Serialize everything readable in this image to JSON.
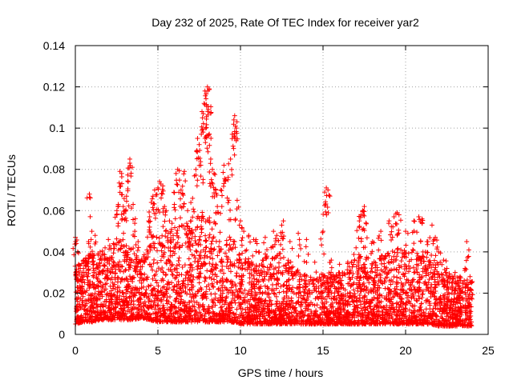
{
  "colors": {
    "background": "#ffffff",
    "marker": "#ff0000",
    "axis": "#000000",
    "grid": "#a0a0a0"
  },
  "chart_data": {
    "type": "scatter",
    "title": "Day 232 of 2025, Rate Of TEC Index for receiver yar2",
    "xlabel": "GPS time / hours",
    "ylabel": "ROTI / TECUs",
    "xlim": [
      0,
      25
    ],
    "ylim": [
      0,
      0.14
    ],
    "xticks": [
      0,
      5,
      10,
      15,
      20,
      25
    ],
    "yticks": [
      0,
      0.02,
      0.04,
      0.06,
      0.08,
      0.1,
      0.12,
      0.14
    ],
    "xtick_labels": [
      "0",
      "5",
      "10",
      "15",
      "20",
      "25"
    ],
    "ytick_labels": [
      "0",
      "0.02",
      "0.04",
      "0.06",
      "0.08",
      "0.1",
      "0.12",
      "0.14"
    ],
    "grid": true,
    "marker": "+",
    "marker_color": "#ff0000",
    "series": [
      {
        "name": "ROTI",
        "points": [
          [
            0.0,
            0.047
          ],
          [
            0.05,
            0.044
          ],
          [
            0.2,
            0.034
          ],
          [
            0.3,
            0.032
          ],
          [
            0.5,
            0.036
          ],
          [
            0.8,
            0.045
          ],
          [
            0.85,
            0.068
          ],
          [
            1.0,
            0.05
          ],
          [
            1.2,
            0.048
          ],
          [
            1.5,
            0.04
          ],
          [
            1.8,
            0.042
          ],
          [
            2.0,
            0.046
          ],
          [
            2.3,
            0.044
          ],
          [
            2.5,
            0.058
          ],
          [
            2.6,
            0.063
          ],
          [
            2.7,
            0.079
          ],
          [
            2.8,
            0.078
          ],
          [
            2.9,
            0.062
          ],
          [
            3.0,
            0.06
          ],
          [
            3.1,
            0.067
          ],
          [
            3.2,
            0.074
          ],
          [
            3.3,
            0.083
          ],
          [
            3.3,
            0.085
          ],
          [
            3.5,
            0.063
          ],
          [
            3.6,
            0.05
          ],
          [
            3.8,
            0.045
          ],
          [
            4.0,
            0.036
          ],
          [
            4.2,
            0.035
          ],
          [
            4.4,
            0.04
          ],
          [
            4.5,
            0.052
          ],
          [
            4.5,
            0.057
          ],
          [
            4.6,
            0.064
          ],
          [
            4.7,
            0.067
          ],
          [
            4.8,
            0.07
          ],
          [
            5.0,
            0.071
          ],
          [
            5.1,
            0.074
          ],
          [
            5.3,
            0.072
          ],
          [
            5.4,
            0.062
          ],
          [
            5.5,
            0.06
          ],
          [
            5.7,
            0.055
          ],
          [
            5.8,
            0.05
          ],
          [
            6.0,
            0.063
          ],
          [
            6.1,
            0.078
          ],
          [
            6.2,
            0.08
          ],
          [
            6.4,
            0.07
          ],
          [
            6.5,
            0.068
          ],
          [
            6.6,
            0.079
          ],
          [
            6.8,
            0.06
          ],
          [
            7.0,
            0.055
          ],
          [
            7.1,
            0.066
          ],
          [
            7.3,
            0.08
          ],
          [
            7.4,
            0.095
          ],
          [
            7.5,
            0.092
          ],
          [
            7.6,
            0.082
          ],
          [
            7.7,
            0.105
          ],
          [
            7.75,
            0.107
          ],
          [
            7.8,
            0.112
          ],
          [
            7.85,
            0.118
          ],
          [
            7.9,
            0.1
          ],
          [
            8.0,
            0.12
          ],
          [
            8.05,
            0.109
          ],
          [
            8.1,
            0.119
          ],
          [
            8.1,
            0.097
          ],
          [
            8.2,
            0.085
          ],
          [
            8.3,
            0.08
          ],
          [
            8.4,
            0.078
          ],
          [
            8.5,
            0.07
          ],
          [
            8.6,
            0.062
          ],
          [
            8.8,
            0.07
          ],
          [
            9.0,
            0.082
          ],
          [
            9.1,
            0.075
          ],
          [
            9.3,
            0.065
          ],
          [
            9.4,
            0.085
          ],
          [
            9.5,
            0.097
          ],
          [
            9.6,
            0.104
          ],
          [
            9.65,
            0.106
          ],
          [
            9.7,
            0.101
          ],
          [
            9.8,
            0.065
          ],
          [
            10.0,
            0.055
          ],
          [
            10.2,
            0.05
          ],
          [
            10.5,
            0.048
          ],
          [
            10.8,
            0.046
          ],
          [
            11.0,
            0.044
          ],
          [
            11.5,
            0.047
          ],
          [
            12.0,
            0.05
          ],
          [
            12.2,
            0.048
          ],
          [
            12.5,
            0.053
          ],
          [
            12.6,
            0.055
          ],
          [
            13.0,
            0.045
          ],
          [
            13.5,
            0.049
          ],
          [
            14.0,
            0.046
          ],
          [
            14.5,
            0.035
          ],
          [
            15.0,
            0.05
          ],
          [
            15.1,
            0.069
          ],
          [
            15.2,
            0.071
          ],
          [
            15.3,
            0.07
          ],
          [
            15.5,
            0.036
          ],
          [
            16.0,
            0.034
          ],
          [
            16.5,
            0.035
          ],
          [
            17.0,
            0.042
          ],
          [
            17.2,
            0.055
          ],
          [
            17.3,
            0.058
          ],
          [
            17.4,
            0.06
          ],
          [
            17.5,
            0.062
          ],
          [
            17.6,
            0.054
          ],
          [
            18.0,
            0.045
          ],
          [
            18.5,
            0.05
          ],
          [
            19.0,
            0.055
          ],
          [
            19.3,
            0.057
          ],
          [
            19.5,
            0.059
          ],
          [
            19.6,
            0.058
          ],
          [
            20.0,
            0.05
          ],
          [
            20.5,
            0.055
          ],
          [
            20.8,
            0.057
          ],
          [
            21.0,
            0.056
          ],
          [
            21.3,
            0.045
          ],
          [
            21.6,
            0.053
          ],
          [
            21.8,
            0.047
          ],
          [
            22.0,
            0.04
          ],
          [
            22.3,
            0.036
          ],
          [
            22.5,
            0.032
          ],
          [
            23.0,
            0.03
          ],
          [
            23.3,
            0.028
          ],
          [
            23.6,
            0.032
          ],
          [
            23.7,
            0.045
          ],
          [
            23.9,
            0.028
          ],
          [
            24.0,
            0.025
          ]
        ],
        "dense_band": {
          "x": [
            0.0,
            0.5,
            1.0,
            1.5,
            2.0,
            2.5,
            3.0,
            3.5,
            4.0,
            4.5,
            5.0,
            5.5,
            6.0,
            6.5,
            7.0,
            7.5,
            8.0,
            8.5,
            9.0,
            9.5,
            10.0,
            10.5,
            11.0,
            11.5,
            12.0,
            12.5,
            13.0,
            13.5,
            14.0,
            14.5,
            15.0,
            15.5,
            16.0,
            16.5,
            17.0,
            17.5,
            18.0,
            18.5,
            19.0,
            19.5,
            20.0,
            20.5,
            21.0,
            21.5,
            22.0,
            22.5,
            23.0,
            23.5,
            24.0
          ],
          "low": [
            0.005,
            0.006,
            0.006,
            0.007,
            0.007,
            0.007,
            0.007,
            0.007,
            0.008,
            0.007,
            0.006,
            0.006,
            0.006,
            0.006,
            0.006,
            0.006,
            0.006,
            0.006,
            0.006,
            0.006,
            0.005,
            0.005,
            0.005,
            0.005,
            0.005,
            0.005,
            0.005,
            0.005,
            0.005,
            0.005,
            0.005,
            0.005,
            0.005,
            0.005,
            0.005,
            0.005,
            0.005,
            0.005,
            0.005,
            0.005,
            0.005,
            0.005,
            0.005,
            0.005,
            0.004,
            0.004,
            0.004,
            0.004,
            0.004
          ],
          "high": [
            0.032,
            0.038,
            0.04,
            0.04,
            0.042,
            0.046,
            0.048,
            0.04,
            0.036,
            0.045,
            0.052,
            0.05,
            0.052,
            0.055,
            0.052,
            0.06,
            0.06,
            0.055,
            0.045,
            0.05,
            0.038,
            0.036,
            0.034,
            0.038,
            0.038,
            0.04,
            0.035,
            0.032,
            0.03,
            0.028,
            0.03,
            0.03,
            0.032,
            0.034,
            0.038,
            0.04,
            0.036,
            0.038,
            0.04,
            0.042,
            0.04,
            0.042,
            0.04,
            0.04,
            0.032,
            0.03,
            0.028,
            0.028,
            0.026
          ]
        }
      }
    ]
  }
}
